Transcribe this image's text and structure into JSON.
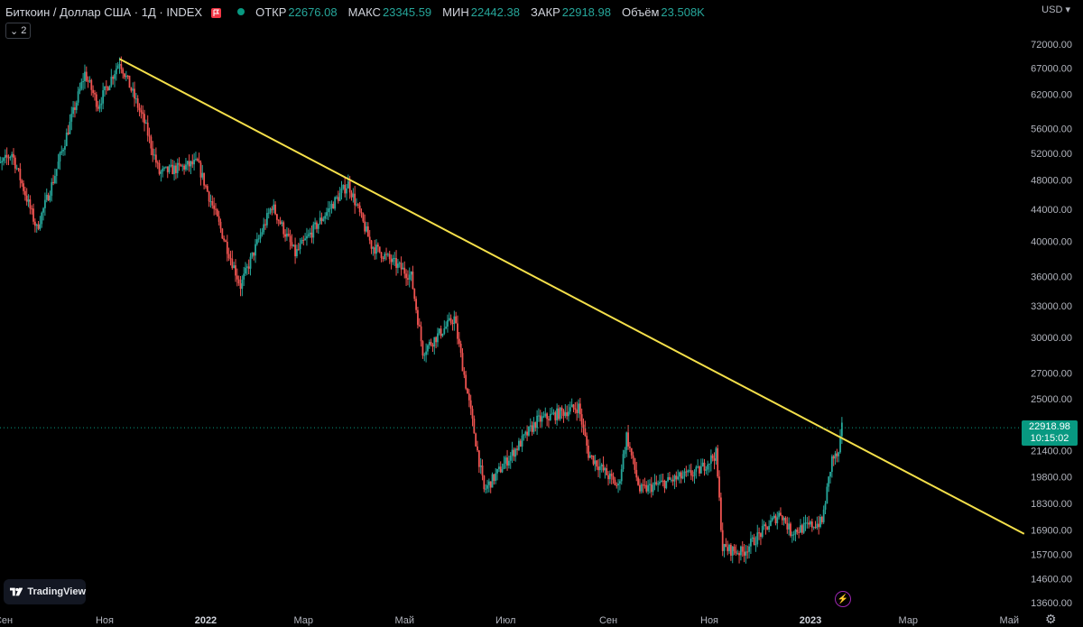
{
  "header": {
    "symbol": "Биткоин / Доллар США · 1Д · INDEX",
    "open_label": "ОТКР",
    "open": "22676.08",
    "high_label": "МАКС",
    "high": "23345.59",
    "low_label": "МИН",
    "low": "22442.38",
    "close_label": "ЗАКР",
    "close": "22918.98",
    "volume_label": "Объём",
    "volume": "23.508K",
    "indicators_count": "2",
    "currency": "USD"
  },
  "price_tag": {
    "price": "22918.98",
    "countdown": "10:15:02"
  },
  "logo_text": "TradingView",
  "colors": {
    "up": "#26a69a",
    "down": "#ef5350",
    "trendline": "#f5e04a",
    "price_tag": "#089981"
  },
  "chart_data": {
    "type": "candlestick",
    "y_scale": "log",
    "y_ticks": [
      "72000.00",
      "67000.00",
      "62000.00",
      "56000.00",
      "52000.00",
      "48000.00",
      "44000.00",
      "40000.00",
      "36000.00",
      "33000.00",
      "30000.00",
      "27000.00",
      "25000.00",
      "22918.98",
      "21400.00",
      "19800.00",
      "18300.00",
      "16900.00",
      "15700.00",
      "14600.00",
      "13600.00"
    ],
    "y_tick_values": [
      72000,
      67000,
      62000,
      56000,
      52000,
      48000,
      44000,
      40000,
      36000,
      33000,
      30000,
      27000,
      25000,
      21400,
      19800,
      18300,
      16900,
      15700,
      14600,
      13600
    ],
    "x_ticks": [
      "Сен",
      "Ноя",
      "2022",
      "Мар",
      "Май",
      "Июл",
      "Сен",
      "Ноя",
      "2023",
      "Мар",
      "Май"
    ],
    "x_tick_dates": [
      "2021-09-01",
      "2021-11-01",
      "2022-01-01",
      "2022-03-01",
      "2022-05-01",
      "2022-07-01",
      "2022-09-01",
      "2022-11-01",
      "2023-01-01",
      "2023-03-01",
      "2023-05-01"
    ],
    "price_path": [
      {
        "date": "2021-08-25",
        "close": 49000
      },
      {
        "date": "2021-09-06",
        "close": 52000
      },
      {
        "date": "2021-09-21",
        "close": 41500
      },
      {
        "date": "2021-10-01",
        "close": 48000
      },
      {
        "date": "2021-10-20",
        "close": 66000
      },
      {
        "date": "2021-10-28",
        "close": 60000
      },
      {
        "date": "2021-11-10",
        "close": 68500
      },
      {
        "date": "2021-11-25",
        "close": 57000
      },
      {
        "date": "2021-12-04",
        "close": 49000
      },
      {
        "date": "2021-12-27",
        "close": 50500
      },
      {
        "date": "2022-01-22",
        "close": 35000
      },
      {
        "date": "2022-02-10",
        "close": 44500
      },
      {
        "date": "2022-02-24",
        "close": 38500
      },
      {
        "date": "2022-03-28",
        "close": 47500
      },
      {
        "date": "2022-04-11",
        "close": 39500
      },
      {
        "date": "2022-05-05",
        "close": 36000
      },
      {
        "date": "2022-05-12",
        "close": 28800
      },
      {
        "date": "2022-05-31",
        "close": 31800
      },
      {
        "date": "2022-06-13",
        "close": 22000
      },
      {
        "date": "2022-06-18",
        "close": 19000
      },
      {
        "date": "2022-07-20",
        "close": 23400
      },
      {
        "date": "2022-08-14",
        "close": 24400
      },
      {
        "date": "2022-08-20",
        "close": 21200
      },
      {
        "date": "2022-09-07",
        "close": 19200
      },
      {
        "date": "2022-09-12",
        "close": 22400
      },
      {
        "date": "2022-09-20",
        "close": 19000
      },
      {
        "date": "2022-10-25",
        "close": 20100
      },
      {
        "date": "2022-11-05",
        "close": 21200
      },
      {
        "date": "2022-11-09",
        "close": 16000
      },
      {
        "date": "2022-11-21",
        "close": 15800
      },
      {
        "date": "2022-12-14",
        "close": 17800
      },
      {
        "date": "2022-12-20",
        "close": 16800
      },
      {
        "date": "2023-01-08",
        "close": 17300
      },
      {
        "date": "2023-01-14",
        "close": 20900
      },
      {
        "date": "2023-01-18",
        "close": 21100
      },
      {
        "date": "2023-01-20",
        "close": 22900
      }
    ],
    "trendline": [
      {
        "date": "2021-11-10",
        "price": 68900
      },
      {
        "date": "2023-05-10",
        "price": 16700
      }
    ],
    "last_price": 22918.98,
    "grid": false
  }
}
